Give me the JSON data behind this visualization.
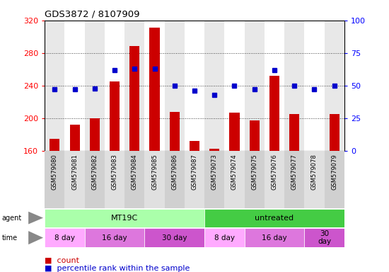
{
  "title": "GDS3872 / 8107909",
  "samples": [
    "GSM579080",
    "GSM579081",
    "GSM579082",
    "GSM579083",
    "GSM579084",
    "GSM579085",
    "GSM579086",
    "GSM579087",
    "GSM579073",
    "GSM579074",
    "GSM579075",
    "GSM579076",
    "GSM579077",
    "GSM579078",
    "GSM579079"
  ],
  "counts": [
    175,
    192,
    200,
    245,
    289,
    311,
    208,
    172,
    163,
    207,
    197,
    252,
    205,
    160,
    205
  ],
  "percentiles": [
    47,
    47,
    48,
    62,
    63,
    63,
    50,
    46,
    43,
    50,
    47,
    62,
    50,
    47,
    50
  ],
  "ylim_left": [
    160,
    320
  ],
  "ylim_right": [
    0,
    100
  ],
  "yticks_left": [
    160,
    200,
    240,
    280,
    320
  ],
  "yticks_right": [
    0,
    25,
    50,
    75,
    100
  ],
  "bar_color": "#cc0000",
  "dot_color": "#0000cc",
  "agent_color_mt19c": "#aaffaa",
  "agent_color_untreated": "#44cc44",
  "time_color_8day": "#ffaaff",
  "time_color_16day": "#dd77dd",
  "time_color_30day": "#cc55cc",
  "bg_even": "#e8e8e8",
  "bg_odd": "#ffffff",
  "grid_color": "#444444",
  "spine_color": "#000000"
}
